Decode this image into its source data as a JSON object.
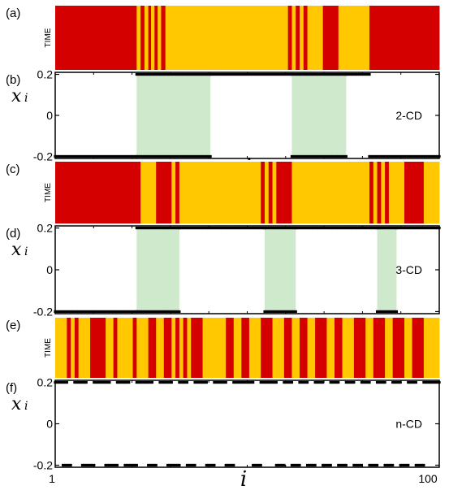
{
  "chart_data": {
    "type": "composite",
    "colors": {
      "state_a": "#d40000",
      "state_b": "#ffc800",
      "shade": "#cfe9cc",
      "points": "#000000"
    },
    "x": {
      "label": "i",
      "min": 1,
      "max": 100,
      "tick_labels": [
        "1",
        "100"
      ]
    },
    "panels": [
      {
        "kind": "raster",
        "label": "(a)",
        "ylabel": "TIME",
        "segments": [
          [
            1,
            22,
            "r"
          ],
          [
            22,
            23,
            "y"
          ],
          [
            23,
            24,
            "r"
          ],
          [
            24,
            25,
            "y"
          ],
          [
            25,
            25.7,
            "r"
          ],
          [
            25.7,
            26.6,
            "y"
          ],
          [
            26.6,
            27.4,
            "r"
          ],
          [
            27.4,
            28.3,
            "y"
          ],
          [
            28.3,
            29.4,
            "r"
          ],
          [
            29.4,
            30.3,
            "y"
          ],
          [
            30.3,
            41,
            "y"
          ],
          [
            41,
            61,
            "y"
          ],
          [
            61,
            62,
            "r"
          ],
          [
            62,
            63,
            "y"
          ],
          [
            63,
            64,
            "r"
          ],
          [
            64,
            65,
            "y"
          ],
          [
            65,
            66,
            "r"
          ],
          [
            66,
            67,
            "y"
          ],
          [
            67,
            70,
            "y"
          ],
          [
            70,
            74,
            "r"
          ],
          [
            74,
            82,
            "y"
          ],
          [
            82,
            100,
            "r"
          ]
        ]
      },
      {
        "kind": "scatter",
        "label": "(b)",
        "ylabel": "x",
        "ylabel_sub": "i",
        "yticks": [
          "0.2",
          "0",
          "-0.2"
        ],
        "ylim": [
          -0.21,
          0.21
        ],
        "tag": "2-CD",
        "shaded": [
          [
            22,
            41
          ],
          [
            62,
            76
          ]
        ],
        "upper": [
          [
            22,
            41
          ],
          [
            41,
            62
          ],
          [
            62,
            76
          ],
          [
            76,
            82
          ]
        ],
        "lower": [
          [
            1,
            22
          ],
          [
            22,
            41
          ],
          [
            62,
            76
          ],
          [
            82,
            100
          ]
        ],
        "stray": [
          [
            51,
            -0.2
          ]
        ]
      },
      {
        "kind": "raster",
        "label": "(c)",
        "ylabel": "TIME",
        "segments": [
          [
            1,
            23,
            "r"
          ],
          [
            23,
            27,
            "y"
          ],
          [
            27,
            31,
            "r"
          ],
          [
            31,
            32,
            "y"
          ],
          [
            32,
            33,
            "r"
          ],
          [
            33,
            36,
            "y"
          ],
          [
            36,
            54,
            "y"
          ],
          [
            54,
            55,
            "r"
          ],
          [
            55,
            56,
            "y"
          ],
          [
            56,
            57,
            "r"
          ],
          [
            57,
            58,
            "y"
          ],
          [
            58,
            62,
            "r"
          ],
          [
            62,
            82,
            "y"
          ],
          [
            82,
            83,
            "r"
          ],
          [
            83,
            84,
            "y"
          ],
          [
            84,
            85,
            "r"
          ],
          [
            85,
            86,
            "y"
          ],
          [
            86,
            87,
            "r"
          ],
          [
            87,
            91,
            "y"
          ],
          [
            91,
            96,
            "r"
          ],
          [
            96,
            100,
            "y"
          ]
        ]
      },
      {
        "kind": "scatter",
        "label": "(d)",
        "ylabel": "x",
        "ylabel_sub": "i",
        "yticks": [
          "0.2",
          "0",
          "-0.2"
        ],
        "ylim": [
          -0.21,
          0.21
        ],
        "tag": "3-CD",
        "shaded": [
          [
            22,
            33
          ],
          [
            55,
            63
          ],
          [
            84,
            89
          ]
        ],
        "upper": [
          [
            22,
            33
          ],
          [
            33,
            55
          ],
          [
            55,
            63
          ],
          [
            63,
            84
          ],
          [
            84,
            89
          ],
          [
            89,
            100
          ]
        ],
        "lower": [
          [
            1,
            22
          ],
          [
            22,
            33
          ],
          [
            55,
            63
          ],
          [
            84,
            89
          ]
        ],
        "stray": []
      },
      {
        "kind": "raster",
        "label": "(e)",
        "ylabel": "TIME",
        "segments": [
          [
            1,
            4,
            "y"
          ],
          [
            4,
            5,
            "r"
          ],
          [
            5,
            6,
            "y"
          ],
          [
            6,
            7,
            "r"
          ],
          [
            7,
            10,
            "y"
          ],
          [
            10,
            14,
            "r"
          ],
          [
            14,
            16,
            "y"
          ],
          [
            16,
            17,
            "r"
          ],
          [
            17,
            21,
            "y"
          ],
          [
            21,
            22,
            "r"
          ],
          [
            22,
            25,
            "y"
          ],
          [
            25,
            27,
            "r"
          ],
          [
            27,
            29,
            "y"
          ],
          [
            29,
            31,
            "r"
          ],
          [
            31,
            32,
            "y"
          ],
          [
            32,
            33,
            "r"
          ],
          [
            33,
            34,
            "y"
          ],
          [
            34,
            35,
            "r"
          ],
          [
            35,
            36,
            "y"
          ],
          [
            36,
            39,
            "r"
          ],
          [
            39,
            45,
            "y"
          ],
          [
            45,
            47,
            "r"
          ],
          [
            47,
            49,
            "y"
          ],
          [
            49,
            51,
            "r"
          ],
          [
            51,
            54,
            "y"
          ],
          [
            54,
            57,
            "r"
          ],
          [
            57,
            60,
            "y"
          ],
          [
            60,
            62,
            "r"
          ],
          [
            62,
            64,
            "y"
          ],
          [
            64,
            66,
            "r"
          ],
          [
            66,
            68,
            "y"
          ],
          [
            68,
            71,
            "r"
          ],
          [
            71,
            73,
            "y"
          ],
          [
            73,
            75,
            "r"
          ],
          [
            75,
            78,
            "y"
          ],
          [
            78,
            81,
            "r"
          ],
          [
            81,
            83,
            "y"
          ],
          [
            83,
            86,
            "r"
          ],
          [
            86,
            88,
            "y"
          ],
          [
            88,
            91,
            "r"
          ],
          [
            91,
            93,
            "y"
          ],
          [
            93,
            96,
            "r"
          ],
          [
            96,
            100,
            "y"
          ]
        ]
      },
      {
        "kind": "scatter",
        "label": "(f)",
        "ylabel": "x",
        "ylabel_sub": "i",
        "yticks": [
          "0.2",
          "0",
          "-0.2"
        ],
        "ylim": [
          -0.21,
          0.21
        ],
        "tag": "n-CD",
        "shaded": [],
        "upper": [
          [
            1,
            4
          ],
          [
            6,
            9
          ],
          [
            11,
            15
          ],
          [
            17,
            20
          ],
          [
            22,
            26
          ],
          [
            28,
            31
          ],
          [
            33,
            35
          ],
          [
            37,
            40
          ],
          [
            42,
            45
          ],
          [
            47,
            52
          ],
          [
            54,
            58
          ],
          [
            60,
            62
          ],
          [
            64,
            66
          ],
          [
            68,
            70
          ],
          [
            72,
            74
          ],
          [
            76,
            78
          ],
          [
            80,
            82
          ],
          [
            84,
            86
          ],
          [
            88,
            90
          ],
          [
            92,
            94
          ],
          [
            96,
            100
          ]
        ],
        "lower": [
          [
            3,
            5
          ],
          [
            8,
            11
          ],
          [
            14,
            17
          ],
          [
            19,
            22
          ],
          [
            25,
            27
          ],
          [
            30,
            33
          ],
          [
            35,
            37
          ],
          [
            40,
            42
          ],
          [
            45,
            47
          ],
          [
            52,
            54
          ],
          [
            58,
            60
          ],
          [
            62,
            64
          ],
          [
            66,
            68
          ],
          [
            70,
            72
          ],
          [
            74,
            76
          ],
          [
            78,
            80
          ],
          [
            82,
            84
          ],
          [
            86,
            88
          ],
          [
            90,
            92
          ],
          [
            94,
            96
          ]
        ],
        "stray": []
      }
    ]
  }
}
